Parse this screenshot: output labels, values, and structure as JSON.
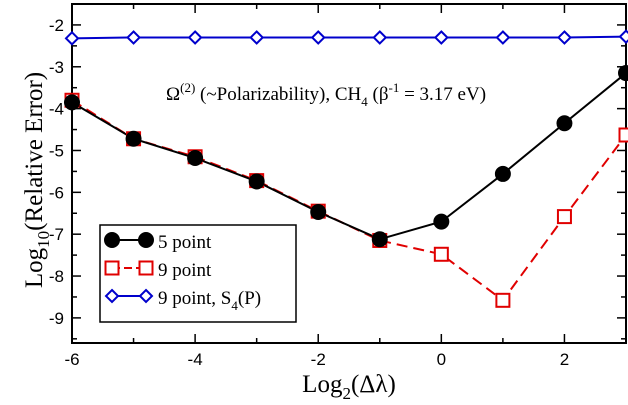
{
  "chart_data": {
    "type": "line",
    "xlabel": "Log2(Δλ)",
    "ylabel": "Log10(Relative Error)",
    "xlim": [
      -6,
      3
    ],
    "ylim": [
      -9.6,
      -1.5
    ],
    "xticks": [
      -6,
      -4,
      -2,
      0,
      2
    ],
    "yticks": [
      -9,
      -8,
      -7,
      -6,
      -5,
      -4,
      -3,
      -2
    ],
    "annotation": "Ω(2) (~Polarizability), CH4 (β-1 = 3.17 eV)",
    "legend_position": "bottom-left",
    "grid": false,
    "series": [
      {
        "name": "5 point",
        "color": "#000000",
        "marker": "filled-circle",
        "dash": "solid",
        "x": [
          -6,
          -5,
          -4,
          -3,
          -2,
          -1,
          0,
          1,
          2,
          3
        ],
        "y": [
          -3.85,
          -4.72,
          -5.18,
          -5.74,
          -6.47,
          -7.12,
          -6.7,
          -5.56,
          -4.35,
          -3.15
        ]
      },
      {
        "name": "9 point",
        "color": "#e00000",
        "marker": "open-square",
        "dash": "dashed",
        "x": [
          -6,
          -5,
          -4,
          -3,
          -2,
          -1,
          0,
          1,
          2,
          3
        ],
        "y": [
          -3.8,
          -4.72,
          -5.15,
          -5.72,
          -6.45,
          -7.15,
          -7.48,
          -8.58,
          -6.58,
          -4.63
        ]
      },
      {
        "name": "9 point, S4(P)",
        "color": "#0000cc",
        "marker": "open-diamond",
        "dash": "solid",
        "x": [
          -6,
          -5,
          -4,
          -3,
          -2,
          -1,
          0,
          1,
          2,
          3
        ],
        "y": [
          -2.32,
          -2.3,
          -2.3,
          -2.3,
          -2.3,
          -2.3,
          -2.3,
          -2.3,
          -2.3,
          -2.28
        ]
      }
    ]
  }
}
